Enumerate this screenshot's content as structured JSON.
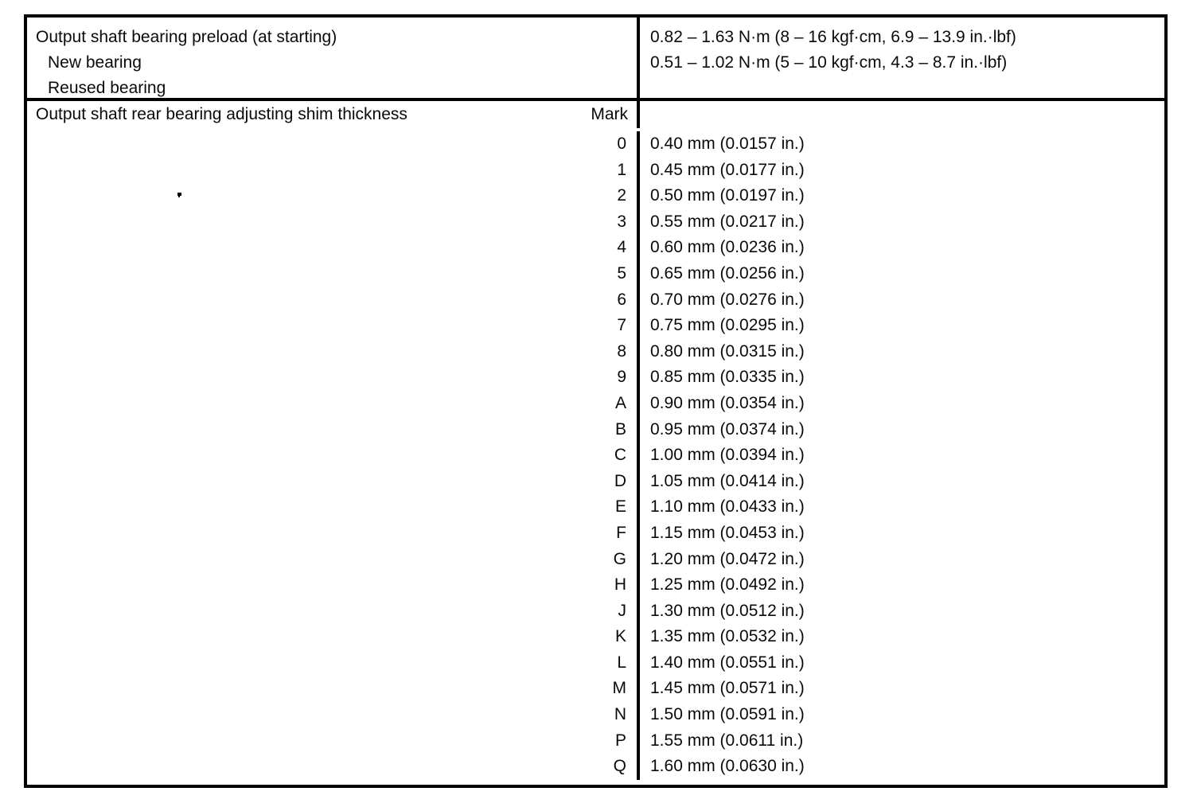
{
  "table": {
    "section1": {
      "title": "Output shaft bearing preload (at starting)",
      "sub_rows": [
        {
          "label": "New bearing",
          "value": "0.82 – 1.63 N·m (8 – 16 kgf·cm, 6.9 – 13.9 in.·lbf)"
        },
        {
          "label": "Reused bearing",
          "value": "0.51 – 1.02 N·m (5 – 10 kgf·cm, 4.3 – 8.7 in.·lbf)"
        }
      ]
    },
    "section2": {
      "title": "Output shaft rear bearing adjusting shim thickness",
      "mark_header": "Mark",
      "rows": [
        {
          "mark": "0",
          "value": "0.40 mm (0.0157 in.)"
        },
        {
          "mark": "1",
          "value": "0.45 mm (0.0177 in.)"
        },
        {
          "mark": "2",
          "value": "0.50 mm (0.0197 in.)"
        },
        {
          "mark": "3",
          "value": "0.55 mm (0.0217 in.)"
        },
        {
          "mark": "4",
          "value": "0.60 mm (0.0236 in.)"
        },
        {
          "mark": "5",
          "value": "0.65 mm (0.0256 in.)"
        },
        {
          "mark": "6",
          "value": "0.70 mm (0.0276 in.)"
        },
        {
          "mark": "7",
          "value": "0.75 mm (0.0295 in.)"
        },
        {
          "mark": "8",
          "value": "0.80 mm (0.0315 in.)"
        },
        {
          "mark": "9",
          "value": "0.85 mm (0.0335 in.)"
        },
        {
          "mark": "A",
          "value": "0.90 mm (0.0354 in.)"
        },
        {
          "mark": "B",
          "value": "0.95 mm (0.0374 in.)"
        },
        {
          "mark": "C",
          "value": "1.00 mm (0.0394 in.)"
        },
        {
          "mark": "D",
          "value": "1.05 mm (0.0414 in.)"
        },
        {
          "mark": "E",
          "value": "1.10 mm (0.0433 in.)"
        },
        {
          "mark": "F",
          "value": "1.15 mm (0.0453 in.)"
        },
        {
          "mark": "G",
          "value": "1.20 mm (0.0472 in.)"
        },
        {
          "mark": "H",
          "value": "1.25 mm (0.0492 in.)"
        },
        {
          "mark": "J",
          "value": "1.30 mm (0.0512 in.)"
        },
        {
          "mark": "K",
          "value": "1.35 mm (0.0532 in.)"
        },
        {
          "mark": "L",
          "value": "1.40 mm (0.0551 in.)"
        },
        {
          "mark": "M",
          "value": "1.45 mm (0.0571 in.)"
        },
        {
          "mark": "N",
          "value": "1.50 mm (0.0591 in.)"
        },
        {
          "mark": "P",
          "value": "1.55 mm (0.0611 in.)"
        },
        {
          "mark": "Q",
          "value": "1.60 mm (0.0630 in.)"
        }
      ]
    }
  }
}
